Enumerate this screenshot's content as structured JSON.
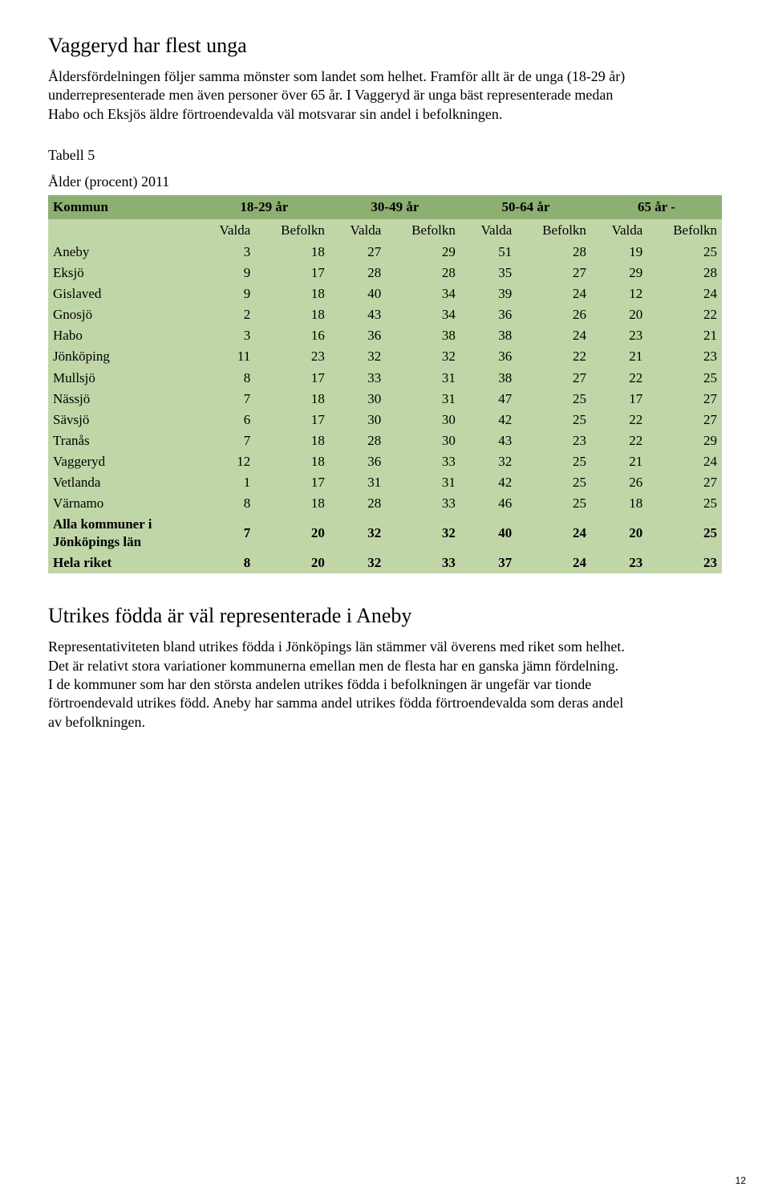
{
  "section1": {
    "title": "Vaggeryd har flest unga",
    "body": "Åldersfördelningen följer samma mönster som landet som helhet. Framför allt är de unga (18-29 år) underrepresenterade men även personer över 65 år. I Vaggeryd är unga bäst representerade medan Habo och Eksjös äldre förtroendevalda väl motsvarar sin andel i befolkningen."
  },
  "table5": {
    "caption_line1": "Tabell 5",
    "caption_line2": "Ålder (procent) 2011",
    "header": {
      "kommun": "Kommun",
      "groups": [
        "18-29 år",
        "30-49 år",
        "50-64 år",
        "65 år -"
      ],
      "sub": [
        "Valda",
        "Befolkn",
        "Valda",
        "Befolkn",
        "Valda",
        "Befolkn",
        "Valda",
        "Befolkn"
      ]
    },
    "rows": [
      {
        "label": "Aneby",
        "v": [
          3,
          18,
          27,
          29,
          51,
          28,
          19,
          25
        ]
      },
      {
        "label": "Eksjö",
        "v": [
          9,
          17,
          28,
          28,
          35,
          27,
          29,
          28
        ]
      },
      {
        "label": "Gislaved",
        "v": [
          9,
          18,
          40,
          34,
          39,
          24,
          12,
          24
        ]
      },
      {
        "label": "Gnosjö",
        "v": [
          2,
          18,
          43,
          34,
          36,
          26,
          20,
          22
        ]
      },
      {
        "label": "Habo",
        "v": [
          3,
          16,
          36,
          38,
          38,
          24,
          23,
          21
        ]
      },
      {
        "label": "Jönköping",
        "v": [
          11,
          23,
          32,
          32,
          36,
          22,
          21,
          23
        ]
      },
      {
        "label": "Mullsjö",
        "v": [
          8,
          17,
          33,
          31,
          38,
          27,
          22,
          25
        ]
      },
      {
        "label": "Nässjö",
        "v": [
          7,
          18,
          30,
          31,
          47,
          25,
          17,
          27
        ]
      },
      {
        "label": "Sävsjö",
        "v": [
          6,
          17,
          30,
          30,
          42,
          25,
          22,
          27
        ]
      },
      {
        "label": "Tranås",
        "v": [
          7,
          18,
          28,
          30,
          43,
          23,
          22,
          29
        ]
      },
      {
        "label": "Vaggeryd",
        "v": [
          12,
          18,
          36,
          33,
          32,
          25,
          21,
          24
        ]
      },
      {
        "label": "Vetlanda",
        "v": [
          1,
          17,
          31,
          31,
          42,
          25,
          26,
          27
        ]
      },
      {
        "label": "Värnamo",
        "v": [
          8,
          18,
          28,
          33,
          46,
          25,
          18,
          25
        ]
      },
      {
        "label": "Alla kommuner i Jönköpings län",
        "v": [
          7,
          20,
          32,
          32,
          40,
          24,
          20,
          25
        ],
        "bold": true,
        "twoLine": true
      },
      {
        "label": "Hela riket",
        "v": [
          8,
          20,
          32,
          33,
          37,
          24,
          23,
          23
        ],
        "bold": true
      }
    ]
  },
  "section2": {
    "title": "Utrikes födda är väl representerade i Aneby",
    "body": "Representativiteten bland utrikes födda i Jönköpings län stämmer väl överens med riket som helhet. Det är relativt stora variationer kommunerna emellan men de flesta har en ganska jämn fördelning. I de kommuner som har den största andelen utrikes födda i befolkningen är ungefär var tionde förtroendevald utrikes född. Aneby har samma andel utrikes födda förtroendevalda som deras andel av befolkningen."
  },
  "page_number": "12"
}
